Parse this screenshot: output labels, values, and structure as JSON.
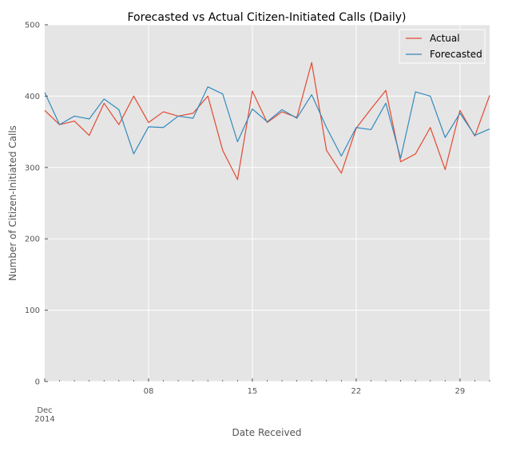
{
  "chart_data": {
    "type": "line",
    "title": "Forecasted vs Actual Citizen-Initiated Calls (Daily)",
    "xlabel": "Date Received",
    "ylabel": "Number of Citizen-Initiated Calls",
    "ylim": [
      0,
      500
    ],
    "yticks": [
      0,
      100,
      200,
      300,
      400,
      500
    ],
    "x": [
      "2014-12-01",
      "2014-12-02",
      "2014-12-03",
      "2014-12-04",
      "2014-12-05",
      "2014-12-06",
      "2014-12-07",
      "2014-12-08",
      "2014-12-09",
      "2014-12-10",
      "2014-12-11",
      "2014-12-12",
      "2014-12-13",
      "2014-12-14",
      "2014-12-15",
      "2014-12-16",
      "2014-12-17",
      "2014-12-18",
      "2014-12-19",
      "2014-12-20",
      "2014-12-21",
      "2014-12-22",
      "2014-12-23",
      "2014-12-24",
      "2014-12-25",
      "2014-12-26",
      "2014-12-27",
      "2014-12-28",
      "2014-12-29",
      "2014-12-30",
      "2014-12-31"
    ],
    "xticks_major": [
      {
        "date": "2014-12-01",
        "label": "Dec",
        "sublabel": "2014"
      },
      {
        "date": "2014-12-08",
        "label": "08"
      },
      {
        "date": "2014-12-15",
        "label": "15"
      },
      {
        "date": "2014-12-22",
        "label": "22"
      },
      {
        "date": "2014-12-29",
        "label": "29"
      }
    ],
    "grid": true,
    "legend_position": "top-right",
    "series": [
      {
        "name": "Actual",
        "color": "#E24A33",
        "values": [
          380,
          360,
          365,
          345,
          390,
          360,
          400,
          363,
          378,
          372,
          376,
          400,
          324,
          283,
          407,
          363,
          378,
          370,
          447,
          324,
          292,
          355,
          382,
          408,
          308,
          319,
          356,
          297,
          380,
          344,
          401
        ]
      },
      {
        "name": "Forecasted",
        "color": "#348ABD",
        "values": [
          405,
          360,
          372,
          368,
          396,
          381,
          319,
          357,
          356,
          372,
          369,
          413,
          403,
          336,
          382,
          364,
          381,
          369,
          402,
          356,
          316,
          356,
          353,
          390,
          313,
          406,
          400,
          342,
          376,
          345,
          354
        ]
      }
    ]
  }
}
